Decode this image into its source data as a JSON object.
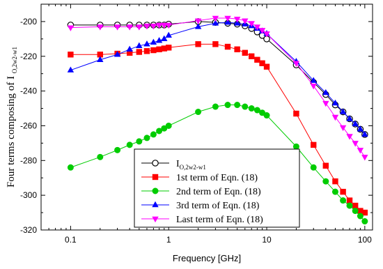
{
  "chart_data": {
    "type": "line",
    "xscale": "log",
    "xlim": [
      0.05,
      120
    ],
    "ylim": [
      -320,
      -190
    ],
    "x_ticks": [
      0.1,
      1,
      10,
      100
    ],
    "x_tick_labels": [
      "0.1",
      "1",
      "10",
      "100"
    ],
    "y_ticks": [
      -320,
      -300,
      -280,
      -260,
      -240,
      -220,
      -200
    ],
    "y_tick_labels": [
      "-320",
      "-300",
      "-280",
      "-260",
      "-240",
      "-220",
      "-200"
    ],
    "xlabel": "Frequency [GHz]",
    "ylabel_main": "Four terms composing of I",
    "ylabel_sub": "O,2w2-w1",
    "legend_position": "bottom-center",
    "series": [
      {
        "name": "I",
        "name_sub": "O,2w2-w1",
        "color": "#000000",
        "marker": "circle-open",
        "x": [
          0.1,
          0.2,
          0.3,
          0.4,
          0.5,
          0.6,
          0.7,
          0.8,
          0.9,
          1,
          2,
          3,
          4,
          5,
          6,
          7,
          8,
          9,
          10,
          20,
          30,
          40,
          50,
          60,
          70,
          80,
          90,
          100
        ],
        "values": [
          -202,
          -202,
          -202,
          -202,
          -202,
          -202,
          -202,
          -202,
          -202,
          -201.5,
          -200,
          -200.5,
          -201,
          -201.5,
          -202.5,
          -204,
          -206,
          -208,
          -210,
          -225,
          -235,
          -242,
          -248,
          -252,
          -256,
          -259,
          -262,
          -265
        ]
      },
      {
        "name": "1st term of Eqn. (18)",
        "color": "#ff0000",
        "marker": "square",
        "x": [
          0.1,
          0.2,
          0.3,
          0.4,
          0.5,
          0.6,
          0.7,
          0.8,
          0.9,
          1,
          2,
          3,
          4,
          5,
          6,
          7,
          8,
          9,
          10,
          20,
          30,
          40,
          50,
          60,
          70,
          80,
          90,
          100
        ],
        "values": [
          -219,
          -219,
          -218.5,
          -218,
          -217.5,
          -217,
          -216.5,
          -216,
          -215.5,
          -215,
          -213,
          -213,
          -214.5,
          -216,
          -218,
          -220,
          -222,
          -224,
          -226,
          -253,
          -271,
          -283,
          -292,
          -298,
          -303,
          -306,
          -309,
          -310
        ]
      },
      {
        "name": "2nd term of Eqn. (18)",
        "color": "#00cc00",
        "marker": "circle",
        "x": [
          0.1,
          0.2,
          0.3,
          0.4,
          0.5,
          0.6,
          0.7,
          0.8,
          0.9,
          1,
          2,
          3,
          4,
          5,
          6,
          7,
          8,
          9,
          10,
          20,
          30,
          40,
          50,
          60,
          70,
          80,
          90,
          100
        ],
        "values": [
          -284,
          -278,
          -274,
          -271,
          -269,
          -267,
          -265,
          -263,
          -261.5,
          -260,
          -252,
          -249,
          -248,
          -248,
          -249,
          -250,
          -251,
          -252.5,
          -254,
          -272,
          -284,
          -292,
          -298,
          -303,
          -306,
          -309,
          -312,
          -315
        ]
      },
      {
        "name": "3rd term of Eqn. (18)",
        "color": "#0000ff",
        "marker": "triangle-up",
        "x": [
          0.1,
          0.2,
          0.3,
          0.4,
          0.5,
          0.6,
          0.7,
          0.8,
          0.9,
          1,
          2,
          3,
          4,
          5,
          6,
          7,
          8,
          9,
          10,
          20,
          30,
          40,
          50,
          60,
          70,
          80,
          90,
          100
        ],
        "values": [
          -228,
          -222,
          -219,
          -216,
          -214,
          -213,
          -212,
          -211,
          -210,
          -208,
          -203,
          -201,
          -200.5,
          -201,
          -201.5,
          -202.5,
          -204,
          -205.5,
          -207,
          -223,
          -234,
          -241,
          -247,
          -252,
          -256,
          -259,
          -262,
          -265
        ]
      },
      {
        "name": "Last term of Eqn. (18)",
        "color": "#ff00ff",
        "marker": "triangle-down",
        "x": [
          0.1,
          0.2,
          0.3,
          0.4,
          0.5,
          0.6,
          0.7,
          0.8,
          0.9,
          1,
          2,
          3,
          4,
          5,
          6,
          7,
          8,
          9,
          10,
          20,
          30,
          40,
          50,
          60,
          70,
          80,
          90,
          100
        ],
        "values": [
          -203.5,
          -203,
          -203,
          -203,
          -203,
          -202.5,
          -202.5,
          -202,
          -202,
          -202,
          -199.5,
          -198,
          -198,
          -198.5,
          -199.5,
          -201,
          -203,
          -205,
          -207,
          -224,
          -237,
          -247,
          -255,
          -261,
          -266,
          -270,
          -274,
          -278
        ]
      }
    ]
  }
}
